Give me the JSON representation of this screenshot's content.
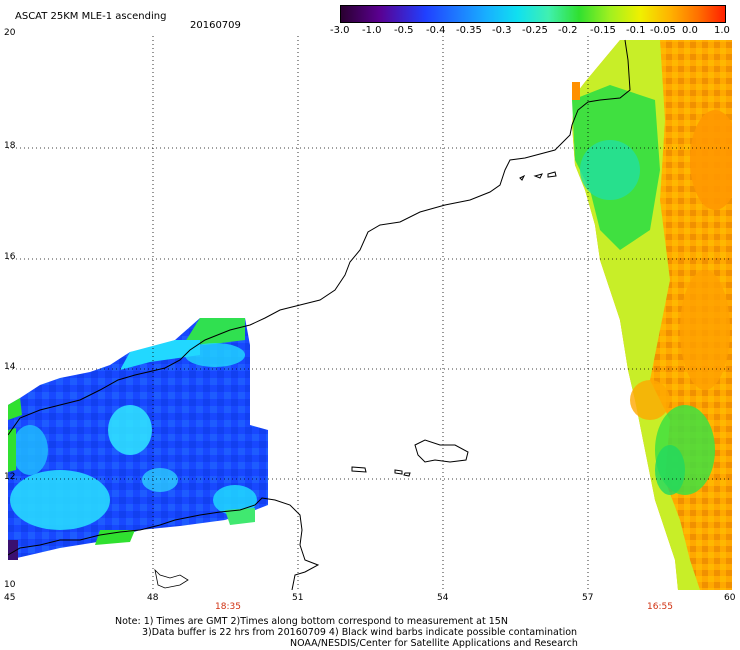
{
  "header": {
    "title": "ASCAT 25KM MLE-1 ascending",
    "date": "20160709"
  },
  "colorbar": {
    "tick_labels": [
      "-3.0",
      "-1.0",
      "-0.5",
      "-0.4",
      "-0.35",
      "-0.3",
      "-0.25",
      "-0.2",
      "-0.15",
      "-0.1",
      "-0.05",
      "0.0",
      "1.0"
    ],
    "colors": [
      "#2a0030",
      "#5a0090",
      "#2040ff",
      "#1e78ff",
      "#18b0ff",
      "#10e0f0",
      "#40f0b0",
      "#30e030",
      "#a0f020",
      "#f0f000",
      "#ffb000",
      "#ff7000",
      "#ff2000"
    ]
  },
  "axes": {
    "lat_labels": [
      "20",
      "18",
      "16",
      "14",
      "12",
      "10"
    ],
    "lon_labels": [
      "45",
      "48",
      "51",
      "54",
      "57",
      "60"
    ]
  },
  "times": [
    "18:35",
    "16:55"
  ],
  "notes": {
    "line1": "Note: 1) Times are GMT 2)Times along bottom correspond to measurement at 15N",
    "line2": "3)Data buffer is 22 hrs from 20160709 4) Black wind barbs indicate possible contamination",
    "line3": "NOAA/NESDIS/Center for Satellite Applications and Research"
  },
  "map_colors": {
    "blue": "#1e50ff",
    "cyan": "#20e0ff",
    "green": "#30e030",
    "yellow": "#d8f020",
    "orange": "#ffa000"
  }
}
